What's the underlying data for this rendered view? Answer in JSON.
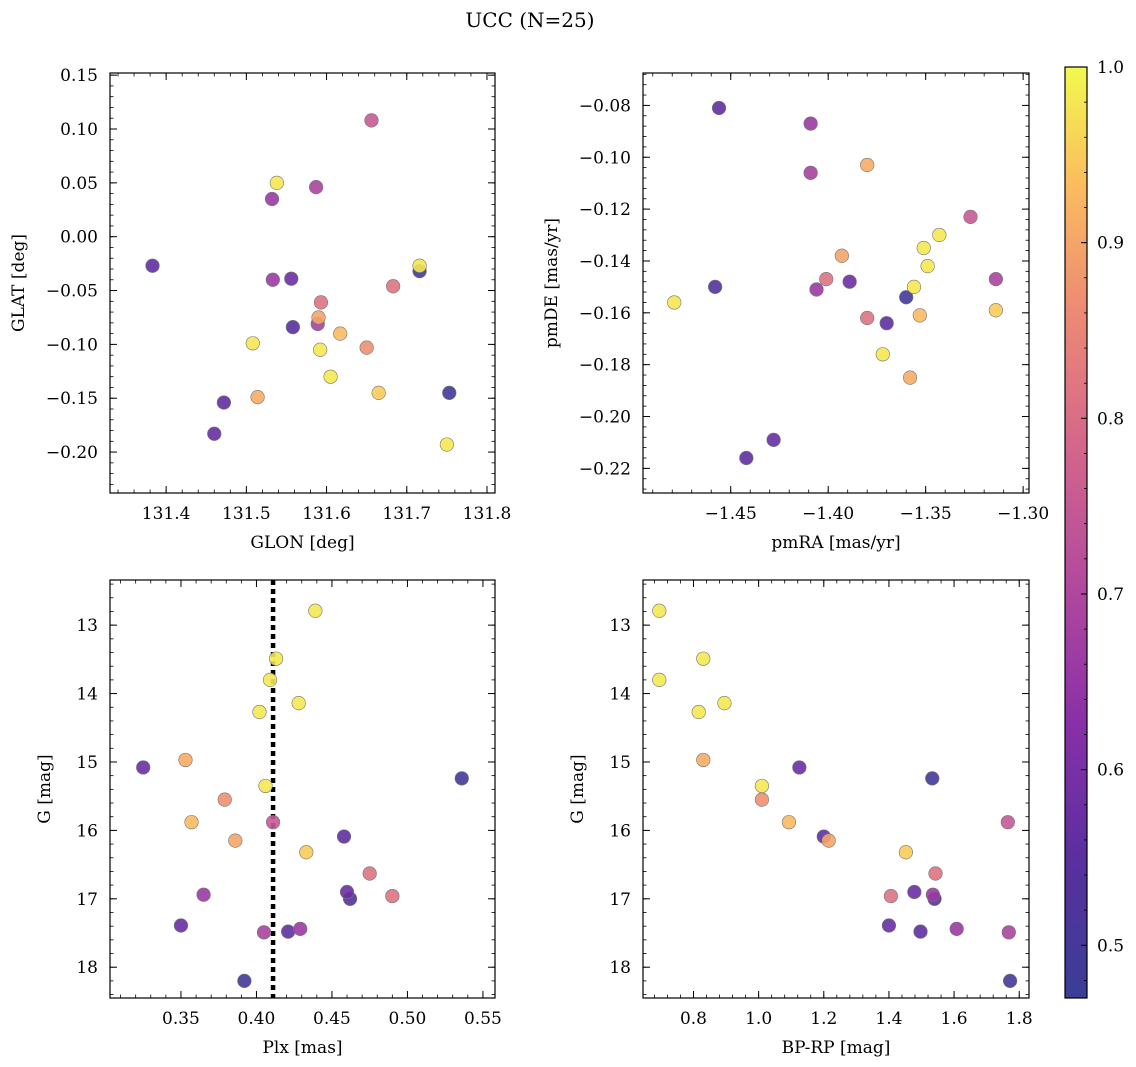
{
  "title": "UCC (N=25)",
  "colorbar": {
    "min": 0.47,
    "max": 1.0,
    "ticks": [
      0.5,
      0.6,
      0.7,
      0.8,
      0.9,
      1.0
    ],
    "tick_labels": [
      "0.5",
      "0.6",
      "0.7",
      "0.8",
      "0.9",
      "1.0"
    ],
    "colormap": "plasma"
  },
  "chart_data": [
    {
      "type": "scatter",
      "id": "glon-glat",
      "xlabel": "GLON [deg]",
      "ylabel": "GLAT [deg]",
      "xlim": [
        131.33,
        131.81
      ],
      "ylim": [
        -0.238,
        0.152
      ],
      "xticks": [
        131.4,
        131.5,
        131.6,
        131.7,
        131.8
      ],
      "xtick_labels": [
        "131.4",
        "131.5",
        "131.6",
        "131.7",
        "131.8"
      ],
      "yticks": [
        0.15,
        0.1,
        0.05,
        0.0,
        -0.05,
        -0.1,
        -0.15,
        -0.2
      ],
      "ytick_labels": [
        "0.15",
        "0.10",
        "0.05",
        "0.00",
        "−0.05",
        "−0.10",
        "−0.15",
        "−0.20"
      ],
      "invert_y": false,
      "points": [
        {
          "x": 131.383,
          "y": -0.027,
          "c": 0.56
        },
        {
          "x": 131.46,
          "y": -0.183,
          "c": 0.57
        },
        {
          "x": 131.472,
          "y": -0.154,
          "c": 0.56
        },
        {
          "x": 131.508,
          "y": -0.099,
          "c": 0.98
        },
        {
          "x": 131.514,
          "y": -0.149,
          "c": 0.91
        },
        {
          "x": 131.532,
          "y": 0.035,
          "c": 0.66
        },
        {
          "x": 131.533,
          "y": -0.04,
          "c": 0.66
        },
        {
          "x": 131.538,
          "y": 0.05,
          "c": 0.98
        },
        {
          "x": 131.556,
          "y": -0.039,
          "c": 0.58
        },
        {
          "x": 131.558,
          "y": -0.084,
          "c": 0.55
        },
        {
          "x": 131.587,
          "y": 0.046,
          "c": 0.69
        },
        {
          "x": 131.589,
          "y": -0.081,
          "c": 0.68
        },
        {
          "x": 131.59,
          "y": -0.075,
          "c": 0.9
        },
        {
          "x": 131.592,
          "y": -0.105,
          "c": 0.98
        },
        {
          "x": 131.593,
          "y": -0.061,
          "c": 0.81
        },
        {
          "x": 131.605,
          "y": -0.13,
          "c": 0.98
        },
        {
          "x": 131.617,
          "y": -0.09,
          "c": 0.93
        },
        {
          "x": 131.65,
          "y": -0.103,
          "c": 0.87
        },
        {
          "x": 131.656,
          "y": 0.108,
          "c": 0.75
        },
        {
          "x": 131.665,
          "y": -0.145,
          "c": 0.95
        },
        {
          "x": 131.683,
          "y": -0.046,
          "c": 0.81
        },
        {
          "x": 131.716,
          "y": -0.032,
          "c": 0.49
        },
        {
          "x": 131.716,
          "y": -0.027,
          "c": 0.98
        },
        {
          "x": 131.75,
          "y": -0.193,
          "c": 0.98
        },
        {
          "x": 131.753,
          "y": -0.145,
          "c": 0.49
        }
      ]
    },
    {
      "type": "scatter",
      "id": "pmra-pmde",
      "xlabel": "pmRA [mas/yr]",
      "ylabel": "pmDE [mas/yr]",
      "xlim": [
        -1.495,
        -1.297
      ],
      "ylim": [
        -0.2295,
        -0.0675
      ],
      "xticks": [
        -1.45,
        -1.4,
        -1.35,
        -1.3
      ],
      "xtick_labels": [
        "−1.45",
        "−1.40",
        "−1.35",
        "−1.30"
      ],
      "yticks": [
        -0.08,
        -0.1,
        -0.12,
        -0.14,
        -0.16,
        -0.18,
        -0.2,
        -0.22
      ],
      "ytick_labels": [
        "−0.08",
        "−0.10",
        "−0.12",
        "−0.14",
        "−0.16",
        "−0.18",
        "−0.20",
        "−0.22"
      ],
      "invert_y": false,
      "points": [
        {
          "x": -1.479,
          "y": -0.156,
          "c": 0.98
        },
        {
          "x": -1.458,
          "y": -0.15,
          "c": 0.53
        },
        {
          "x": -1.456,
          "y": -0.081,
          "c": 0.56
        },
        {
          "x": -1.442,
          "y": -0.216,
          "c": 0.56
        },
        {
          "x": -1.428,
          "y": -0.209,
          "c": 0.57
        },
        {
          "x": -1.409,
          "y": -0.087,
          "c": 0.66
        },
        {
          "x": -1.409,
          "y": -0.106,
          "c": 0.68
        },
        {
          "x": -1.406,
          "y": -0.151,
          "c": 0.66
        },
        {
          "x": -1.401,
          "y": -0.147,
          "c": 0.81
        },
        {
          "x": -1.393,
          "y": -0.138,
          "c": 0.9
        },
        {
          "x": -1.389,
          "y": -0.148,
          "c": 0.58
        },
        {
          "x": -1.38,
          "y": -0.103,
          "c": 0.91
        },
        {
          "x": -1.38,
          "y": -0.162,
          "c": 0.81
        },
        {
          "x": -1.372,
          "y": -0.176,
          "c": 0.98
        },
        {
          "x": -1.37,
          "y": -0.164,
          "c": 0.56
        },
        {
          "x": -1.36,
          "y": -0.154,
          "c": 0.49
        },
        {
          "x": -1.358,
          "y": -0.185,
          "c": 0.91
        },
        {
          "x": -1.356,
          "y": -0.15,
          "c": 0.98
        },
        {
          "x": -1.353,
          "y": -0.161,
          "c": 0.93
        },
        {
          "x": -1.351,
          "y": -0.135,
          "c": 0.98
        },
        {
          "x": -1.349,
          "y": -0.142,
          "c": 0.98
        },
        {
          "x": -1.343,
          "y": -0.13,
          "c": 0.98
        },
        {
          "x": -1.327,
          "y": -0.123,
          "c": 0.75
        },
        {
          "x": -1.314,
          "y": -0.147,
          "c": 0.69
        },
        {
          "x": -1.314,
          "y": -0.159,
          "c": 0.95
        }
      ]
    },
    {
      "type": "scatter",
      "id": "plx-g",
      "xlabel": "Plx [mas]",
      "ylabel": "G [mag]",
      "xlim": [
        0.303,
        0.558
      ],
      "ylim": [
        18.45,
        12.34
      ],
      "xticks": [
        0.35,
        0.4,
        0.45,
        0.5,
        0.55
      ],
      "xtick_labels": [
        "0.35",
        "0.40",
        "0.45",
        "0.50",
        "0.55"
      ],
      "yticks": [
        13,
        14,
        15,
        16,
        17,
        18
      ],
      "ytick_labels": [
        "13",
        "14",
        "15",
        "16",
        "17",
        "18"
      ],
      "invert_y": true,
      "vline": {
        "x": 0.411
      },
      "points": [
        {
          "x": 0.325,
          "y": 15.08,
          "c": 0.58
        },
        {
          "x": 0.35,
          "y": 17.39,
          "c": 0.57
        },
        {
          "x": 0.353,
          "y": 14.97,
          "c": 0.91
        },
        {
          "x": 0.357,
          "y": 15.88,
          "c": 0.93
        },
        {
          "x": 0.365,
          "y": 16.94,
          "c": 0.66
        },
        {
          "x": 0.379,
          "y": 15.55,
          "c": 0.87
        },
        {
          "x": 0.386,
          "y": 16.15,
          "c": 0.9
        },
        {
          "x": 0.392,
          "y": 18.2,
          "c": 0.49
        },
        {
          "x": 0.402,
          "y": 14.27,
          "c": 0.98
        },
        {
          "x": 0.405,
          "y": 17.49,
          "c": 0.69
        },
        {
          "x": 0.406,
          "y": 15.35,
          "c": 0.98
        },
        {
          "x": 0.409,
          "y": 13.8,
          "c": 0.98
        },
        {
          "x": 0.411,
          "y": 15.88,
          "c": 0.75
        },
        {
          "x": 0.413,
          "y": 13.49,
          "c": 0.98
        },
        {
          "x": 0.421,
          "y": 17.48,
          "c": 0.56
        },
        {
          "x": 0.428,
          "y": 14.14,
          "c": 0.98
        },
        {
          "x": 0.429,
          "y": 17.44,
          "c": 0.66
        },
        {
          "x": 0.433,
          "y": 16.32,
          "c": 0.95
        },
        {
          "x": 0.439,
          "y": 12.79,
          "c": 0.98
        },
        {
          "x": 0.458,
          "y": 16.09,
          "c": 0.56
        },
        {
          "x": 0.46,
          "y": 16.9,
          "c": 0.58
        },
        {
          "x": 0.462,
          "y": 17.0,
          "c": 0.53
        },
        {
          "x": 0.475,
          "y": 16.63,
          "c": 0.81
        },
        {
          "x": 0.49,
          "y": 16.96,
          "c": 0.81
        },
        {
          "x": 0.536,
          "y": 15.24,
          "c": 0.49
        }
      ]
    },
    {
      "type": "scatter",
      "id": "bprp-g",
      "xlabel": "BP-RP [mag]",
      "ylabel": "G [mag]",
      "xlim": [
        0.645,
        1.83
      ],
      "ylim": [
        18.45,
        12.34
      ],
      "xticks": [
        0.8,
        1.0,
        1.2,
        1.4,
        1.6,
        1.8
      ],
      "xtick_labels": [
        "0.8",
        "1.0",
        "1.2",
        "1.4",
        "1.6",
        "1.8"
      ],
      "yticks": [
        13,
        14,
        15,
        16,
        17,
        18
      ],
      "ytick_labels": [
        "13",
        "14",
        "15",
        "16",
        "17",
        "18"
      ],
      "invert_y": true,
      "points": [
        {
          "x": 0.695,
          "y": 12.79,
          "c": 0.98
        },
        {
          "x": 0.695,
          "y": 13.8,
          "c": 0.98
        },
        {
          "x": 0.816,
          "y": 14.27,
          "c": 0.98
        },
        {
          "x": 0.83,
          "y": 13.49,
          "c": 0.98
        },
        {
          "x": 0.83,
          "y": 14.97,
          "c": 0.91
        },
        {
          "x": 0.895,
          "y": 14.14,
          "c": 0.98
        },
        {
          "x": 1.01,
          "y": 15.35,
          "c": 0.98
        },
        {
          "x": 1.01,
          "y": 15.55,
          "c": 0.87
        },
        {
          "x": 1.093,
          "y": 15.88,
          "c": 0.93
        },
        {
          "x": 1.125,
          "y": 15.08,
          "c": 0.58
        },
        {
          "x": 1.2,
          "y": 16.09,
          "c": 0.56
        },
        {
          "x": 1.215,
          "y": 16.15,
          "c": 0.9
        },
        {
          "x": 1.4,
          "y": 17.39,
          "c": 0.57
        },
        {
          "x": 1.406,
          "y": 16.96,
          "c": 0.81
        },
        {
          "x": 1.452,
          "y": 16.32,
          "c": 0.95
        },
        {
          "x": 1.478,
          "y": 16.9,
          "c": 0.58
        },
        {
          "x": 1.497,
          "y": 17.48,
          "c": 0.56
        },
        {
          "x": 1.533,
          "y": 15.24,
          "c": 0.49
        },
        {
          "x": 1.535,
          "y": 16.94,
          "c": 0.66
        },
        {
          "x": 1.54,
          "y": 17.0,
          "c": 0.53
        },
        {
          "x": 1.543,
          "y": 16.63,
          "c": 0.81
        },
        {
          "x": 1.608,
          "y": 17.44,
          "c": 0.66
        },
        {
          "x": 1.765,
          "y": 15.88,
          "c": 0.75
        },
        {
          "x": 1.768,
          "y": 17.49,
          "c": 0.69
        },
        {
          "x": 1.772,
          "y": 18.2,
          "c": 0.49
        }
      ]
    }
  ]
}
